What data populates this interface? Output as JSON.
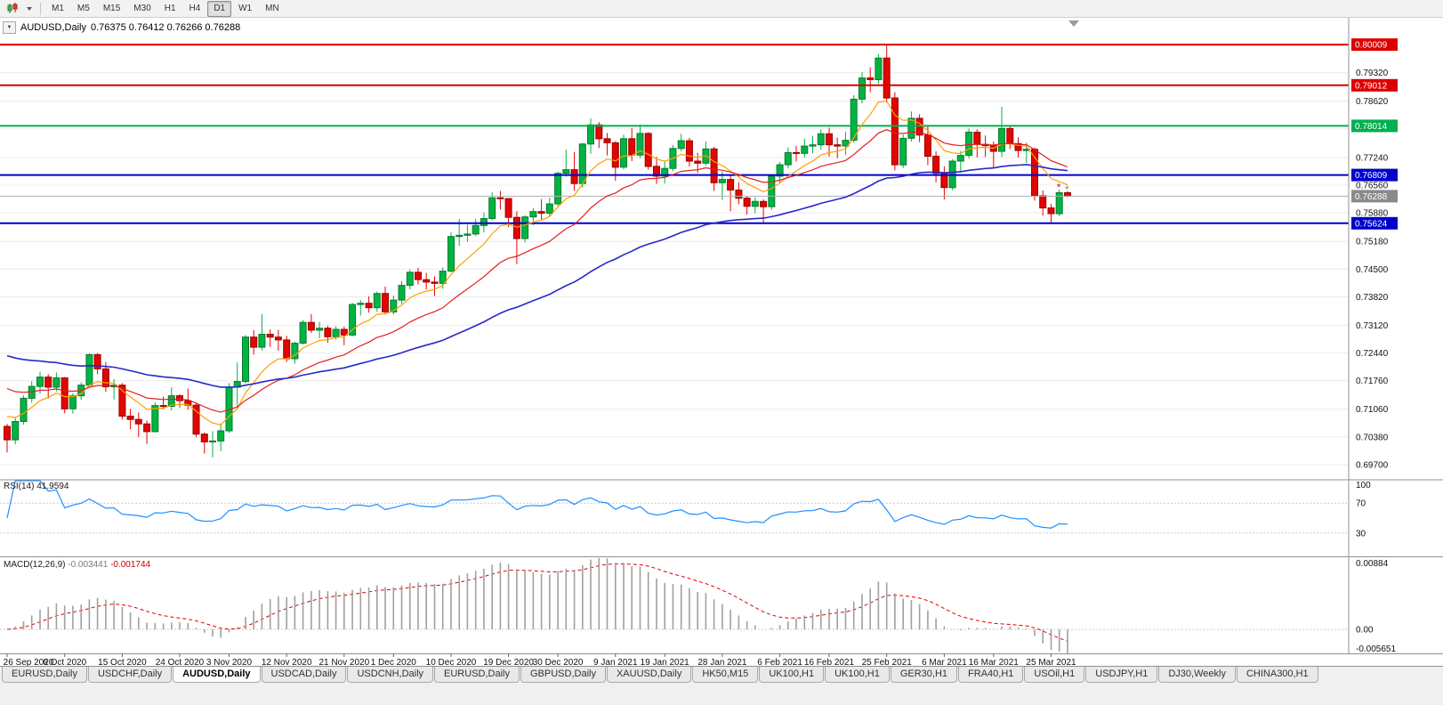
{
  "toolbar": {
    "chart_type_button": "candlestick-chart",
    "timeframes": [
      "M1",
      "M5",
      "M15",
      "M30",
      "H1",
      "H4",
      "D1",
      "W1",
      "MN"
    ],
    "active_timeframe": "D1"
  },
  "chart_header": {
    "collapse_glyph": "▼",
    "symbol_period": "AUDUSD,Daily",
    "ohlc": "0.76375 0.76412 0.76266 0.76288"
  },
  "indicators": {
    "rsi_name": "RSI(14)",
    "rsi_value": "41.9594",
    "macd_name": "MACD(12,26,9)",
    "macd_value_main": "-0.003441",
    "macd_value_signal": "-0.001744"
  },
  "tabs": {
    "items": [
      "EURUSD,Daily",
      "USDCHF,Daily",
      "AUDUSD,Daily",
      "USDCAD,Daily",
      "USDCNH,Daily",
      "EURUSD,Daily",
      "GBPUSD,Daily",
      "XAUUSD,Daily",
      "HK50,M15",
      "UK100,H1",
      "UK100,H1",
      "GER30,H1",
      "FRA40,H1",
      "USOil,H1",
      "USDJPY,H1",
      "DJ30,Weekly",
      "CHINA300,H1"
    ],
    "active_index": 2
  },
  "chart_data": {
    "type": "candlestick",
    "symbol": "AUDUSD",
    "period": "Daily",
    "y_range": [
      0.6935,
      0.8058
    ],
    "price_grid": [
      0.7932,
      0.7862,
      0.7794,
      0.7724,
      0.7656,
      0.7588,
      0.7518,
      0.745,
      0.7382,
      0.7312,
      0.7244,
      0.7176,
      0.7106,
      0.7038,
      0.697
    ],
    "levels": [
      {
        "price": 0.80009,
        "label": "0.80009",
        "color": "#dd0000"
      },
      {
        "price": 0.79012,
        "label": "0.79012",
        "color": "#dd0000"
      },
      {
        "price": 0.78014,
        "label": "0.78014",
        "color": "#00b050"
      },
      {
        "price": 0.76809,
        "label": "0.76809",
        "color": "#0000cd"
      },
      {
        "price": 0.75624,
        "label": "0.75624",
        "color": "#0000cd"
      }
    ],
    "current_price": {
      "price": 0.76288,
      "label": "0.76288",
      "line_color": "#b0b0b0",
      "badge_color": "#8a8a8a"
    },
    "up_color": "#00b441",
    "up_border": "#0a7a2f",
    "down_color": "#e10600",
    "down_border": "#9b0000",
    "moving_averages": [
      {
        "type": "ema",
        "period": 8,
        "seed": 0.7105,
        "color": "#ff9f00",
        "width": 1.2
      },
      {
        "type": "ema",
        "period": 20,
        "seed": 0.717,
        "color": "#e02020",
        "width": 1.2
      },
      {
        "type": "ema",
        "period": 55,
        "seed": 0.7245,
        "color": "#2828c8",
        "width": 1.6
      }
    ],
    "rsi": {
      "period": 14,
      "levels": [
        70,
        30
      ],
      "axis_labels": [
        [
          100,
          "100"
        ],
        [
          70,
          "70"
        ],
        [
          30,
          "30"
        ]
      ],
      "color": "#1e90ff",
      "range": [
        0,
        100
      ]
    },
    "macd": {
      "fast": 12,
      "slow": 26,
      "signal": 9,
      "axis_max_label": "0.00884",
      "axis_zero_label": "0.00",
      "axis_min_label": "-0.005651",
      "histogram_color": "#a0a0a0",
      "signal_color": "#dd0000"
    },
    "trade_markers": [
      {
        "candle": 128,
        "price": 0.765,
        "glyph": "*",
        "color": "#b22222"
      },
      {
        "candle": 129,
        "price": 0.7645,
        "glyph": "*",
        "color": "#888888"
      }
    ],
    "date_labels": [
      [
        0,
        "26 Sep 2020"
      ],
      [
        7,
        "6 Oct 2020"
      ],
      [
        14,
        "15 Oct 2020"
      ],
      [
        21,
        "24 Oct 2020"
      ],
      [
        27,
        "3 Nov 2020"
      ],
      [
        34,
        "12 Nov 2020"
      ],
      [
        41,
        "21 Nov 2020"
      ],
      [
        47,
        "1 Dec 2020"
      ],
      [
        54,
        "10 Dec 2020"
      ],
      [
        61,
        "19 Dec 2020"
      ],
      [
        67,
        "30 Dec 2020"
      ],
      [
        74,
        "9 Jan 2021"
      ],
      [
        80,
        "19 Jan 2021"
      ],
      [
        87,
        "28 Jan 2021"
      ],
      [
        94,
        "6 Feb 2021"
      ],
      [
        100,
        "16 Feb 2021"
      ],
      [
        107,
        "25 Feb 2021"
      ],
      [
        114,
        "6 Mar 2021"
      ],
      [
        120,
        "16 Mar 2021"
      ],
      [
        127,
        "25 Mar 2021"
      ]
    ],
    "candles": [
      [
        0.7064,
        0.707,
        0.7,
        0.7031
      ],
      [
        0.7031,
        0.7085,
        0.702,
        0.7076
      ],
      [
        0.7076,
        0.714,
        0.7068,
        0.7133
      ],
      [
        0.7133,
        0.7175,
        0.7122,
        0.7162
      ],
      [
        0.7162,
        0.7198,
        0.7144,
        0.7185
      ],
      [
        0.7185,
        0.7192,
        0.7132,
        0.716
      ],
      [
        0.716,
        0.7196,
        0.715,
        0.7183
      ],
      [
        0.7183,
        0.7185,
        0.7096,
        0.7107
      ],
      [
        0.7107,
        0.7145,
        0.7095,
        0.7139
      ],
      [
        0.7139,
        0.7172,
        0.7129,
        0.7165
      ],
      [
        0.7165,
        0.7243,
        0.7162,
        0.724
      ],
      [
        0.724,
        0.7244,
        0.7192,
        0.7205
      ],
      [
        0.7205,
        0.7222,
        0.7149,
        0.7161
      ],
      [
        0.7161,
        0.718,
        0.713,
        0.7165
      ],
      [
        0.7165,
        0.717,
        0.7081,
        0.7089
      ],
      [
        0.7089,
        0.7107,
        0.7057,
        0.7081
      ],
      [
        0.7081,
        0.7098,
        0.7038,
        0.707
      ],
      [
        0.707,
        0.7078,
        0.7021,
        0.7051
      ],
      [
        0.7051,
        0.7123,
        0.7049,
        0.7115
      ],
      [
        0.7115,
        0.7137,
        0.7106,
        0.7113
      ],
      [
        0.7113,
        0.716,
        0.7103,
        0.7139
      ],
      [
        0.7139,
        0.7143,
        0.711,
        0.7127
      ],
      [
        0.7127,
        0.7157,
        0.7105,
        0.7116
      ],
      [
        0.7116,
        0.7121,
        0.7037,
        0.7045
      ],
      [
        0.7045,
        0.7049,
        0.6997,
        0.7026
      ],
      [
        0.7026,
        0.7052,
        0.6988,
        0.7028
      ],
      [
        0.7028,
        0.7071,
        0.7003,
        0.7053
      ],
      [
        0.7053,
        0.717,
        0.7048,
        0.716
      ],
      [
        0.716,
        0.7221,
        0.7108,
        0.7174
      ],
      [
        0.7174,
        0.7288,
        0.717,
        0.7283
      ],
      [
        0.7283,
        0.73,
        0.724,
        0.7258
      ],
      [
        0.7258,
        0.734,
        0.725,
        0.729
      ],
      [
        0.729,
        0.7302,
        0.7259,
        0.7283
      ],
      [
        0.7283,
        0.7301,
        0.725,
        0.7276
      ],
      [
        0.7276,
        0.7286,
        0.7222,
        0.723
      ],
      [
        0.723,
        0.7272,
        0.7218,
        0.7268
      ],
      [
        0.7268,
        0.7325,
        0.7265,
        0.7319
      ],
      [
        0.7319,
        0.7339,
        0.7293,
        0.73
      ],
      [
        0.73,
        0.732,
        0.728,
        0.7305
      ],
      [
        0.7305,
        0.7311,
        0.7269,
        0.7284
      ],
      [
        0.7284,
        0.731,
        0.7277,
        0.7302
      ],
      [
        0.7302,
        0.7309,
        0.7263,
        0.7288
      ],
      [
        0.7288,
        0.7367,
        0.7285,
        0.7363
      ],
      [
        0.7363,
        0.7374,
        0.7336,
        0.7366
      ],
      [
        0.7366,
        0.7383,
        0.7343,
        0.7355
      ],
      [
        0.7355,
        0.7395,
        0.7345,
        0.739
      ],
      [
        0.739,
        0.7407,
        0.7339,
        0.7345
      ],
      [
        0.7345,
        0.7385,
        0.7338,
        0.7374
      ],
      [
        0.7374,
        0.742,
        0.7365,
        0.741
      ],
      [
        0.741,
        0.7449,
        0.74,
        0.7442
      ],
      [
        0.7442,
        0.7453,
        0.7412,
        0.7424
      ],
      [
        0.7424,
        0.7441,
        0.74,
        0.7418
      ],
      [
        0.7418,
        0.7432,
        0.7384,
        0.7415
      ],
      [
        0.7415,
        0.7454,
        0.7402,
        0.7445
      ],
      [
        0.7445,
        0.754,
        0.7442,
        0.753
      ],
      [
        0.753,
        0.7573,
        0.7507,
        0.7533
      ],
      [
        0.7533,
        0.7559,
        0.7517,
        0.7536
      ],
      [
        0.7536,
        0.7573,
        0.7531,
        0.7557
      ],
      [
        0.7557,
        0.7589,
        0.754,
        0.7574
      ],
      [
        0.7574,
        0.7639,
        0.757,
        0.7625
      ],
      [
        0.7625,
        0.7642,
        0.7596,
        0.7623
      ],
      [
        0.7623,
        0.7624,
        0.7553,
        0.7577
      ],
      [
        0.7577,
        0.7592,
        0.7462,
        0.7525
      ],
      [
        0.7525,
        0.7582,
        0.7516,
        0.7578
      ],
      [
        0.7578,
        0.76,
        0.7558,
        0.7591
      ],
      [
        0.7591,
        0.7622,
        0.7571,
        0.7587
      ],
      [
        0.7587,
        0.7625,
        0.758,
        0.761
      ],
      [
        0.761,
        0.7689,
        0.7605,
        0.7685
      ],
      [
        0.7685,
        0.7743,
        0.7677,
        0.7694
      ],
      [
        0.7694,
        0.7737,
        0.7642,
        0.766
      ],
      [
        0.766,
        0.776,
        0.765,
        0.7757
      ],
      [
        0.7757,
        0.782,
        0.7733,
        0.7804
      ],
      [
        0.7804,
        0.7811,
        0.7747,
        0.777
      ],
      [
        0.777,
        0.7784,
        0.7729,
        0.776
      ],
      [
        0.776,
        0.7764,
        0.7667,
        0.77
      ],
      [
        0.77,
        0.778,
        0.7695,
        0.777
      ],
      [
        0.777,
        0.7796,
        0.7715,
        0.773
      ],
      [
        0.773,
        0.7805,
        0.7722,
        0.7783
      ],
      [
        0.7783,
        0.7786,
        0.7694,
        0.7702
      ],
      [
        0.7702,
        0.7725,
        0.7659,
        0.7678
      ],
      [
        0.7678,
        0.7714,
        0.766,
        0.7697
      ],
      [
        0.7697,
        0.7754,
        0.769,
        0.7746
      ],
      [
        0.7746,
        0.7782,
        0.7739,
        0.7765
      ],
      [
        0.7765,
        0.7772,
        0.7702,
        0.7715
      ],
      [
        0.7715,
        0.7735,
        0.7686,
        0.771
      ],
      [
        0.771,
        0.7763,
        0.7705,
        0.7745
      ],
      [
        0.7745,
        0.775,
        0.7642,
        0.7662
      ],
      [
        0.7662,
        0.769,
        0.762,
        0.767
      ],
      [
        0.767,
        0.768,
        0.7592,
        0.7644
      ],
      [
        0.7644,
        0.7663,
        0.7609,
        0.7624
      ],
      [
        0.7624,
        0.763,
        0.7584,
        0.7604
      ],
      [
        0.7604,
        0.7626,
        0.7587,
        0.7616
      ],
      [
        0.7616,
        0.7621,
        0.7563,
        0.7603
      ],
      [
        0.7603,
        0.7682,
        0.7595,
        0.7678
      ],
      [
        0.7678,
        0.7713,
        0.7662,
        0.7706
      ],
      [
        0.7706,
        0.7749,
        0.7697,
        0.7736
      ],
      [
        0.7736,
        0.7752,
        0.7714,
        0.7734
      ],
      [
        0.7734,
        0.777,
        0.7724,
        0.7752
      ],
      [
        0.7752,
        0.7777,
        0.7734,
        0.7755
      ],
      [
        0.7755,
        0.7793,
        0.7743,
        0.7782
      ],
      [
        0.7782,
        0.7797,
        0.7726,
        0.7755
      ],
      [
        0.7755,
        0.7773,
        0.7722,
        0.7752
      ],
      [
        0.7752,
        0.7787,
        0.773,
        0.7766
      ],
      [
        0.7766,
        0.7877,
        0.776,
        0.7867
      ],
      [
        0.7867,
        0.7934,
        0.7857,
        0.7919
      ],
      [
        0.7919,
        0.7945,
        0.7884,
        0.7915
      ],
      [
        0.7915,
        0.7978,
        0.7905,
        0.7968
      ],
      [
        0.7968,
        0.8001,
        0.7858,
        0.787
      ],
      [
        0.787,
        0.7884,
        0.7692,
        0.7706
      ],
      [
        0.7706,
        0.778,
        0.7698,
        0.7771
      ],
      [
        0.7771,
        0.7837,
        0.7763,
        0.782
      ],
      [
        0.782,
        0.783,
        0.7762,
        0.7779
      ],
      [
        0.7779,
        0.7801,
        0.7705,
        0.7727
      ],
      [
        0.7727,
        0.7739,
        0.7663,
        0.7685
      ],
      [
        0.7685,
        0.7702,
        0.7621,
        0.765
      ],
      [
        0.765,
        0.772,
        0.7644,
        0.7715
      ],
      [
        0.7715,
        0.774,
        0.7687,
        0.7729
      ],
      [
        0.7729,
        0.7795,
        0.7722,
        0.7786
      ],
      [
        0.7786,
        0.7793,
        0.7724,
        0.7756
      ],
      [
        0.7756,
        0.7778,
        0.7725,
        0.7753
      ],
      [
        0.7753,
        0.7763,
        0.7698,
        0.7739
      ],
      [
        0.7739,
        0.7849,
        0.7725,
        0.7795
      ],
      [
        0.7795,
        0.7801,
        0.7745,
        0.7758
      ],
      [
        0.7758,
        0.7773,
        0.7724,
        0.7741
      ],
      [
        0.7741,
        0.776,
        0.771,
        0.7744
      ],
      [
        0.7744,
        0.7748,
        0.7618,
        0.763
      ],
      [
        0.763,
        0.7643,
        0.7581,
        0.76
      ],
      [
        0.76,
        0.761,
        0.7562,
        0.7586
      ],
      [
        0.7586,
        0.7645,
        0.758,
        0.76375
      ],
      [
        0.76375,
        0.76412,
        0.76266,
        0.76288
      ]
    ]
  }
}
